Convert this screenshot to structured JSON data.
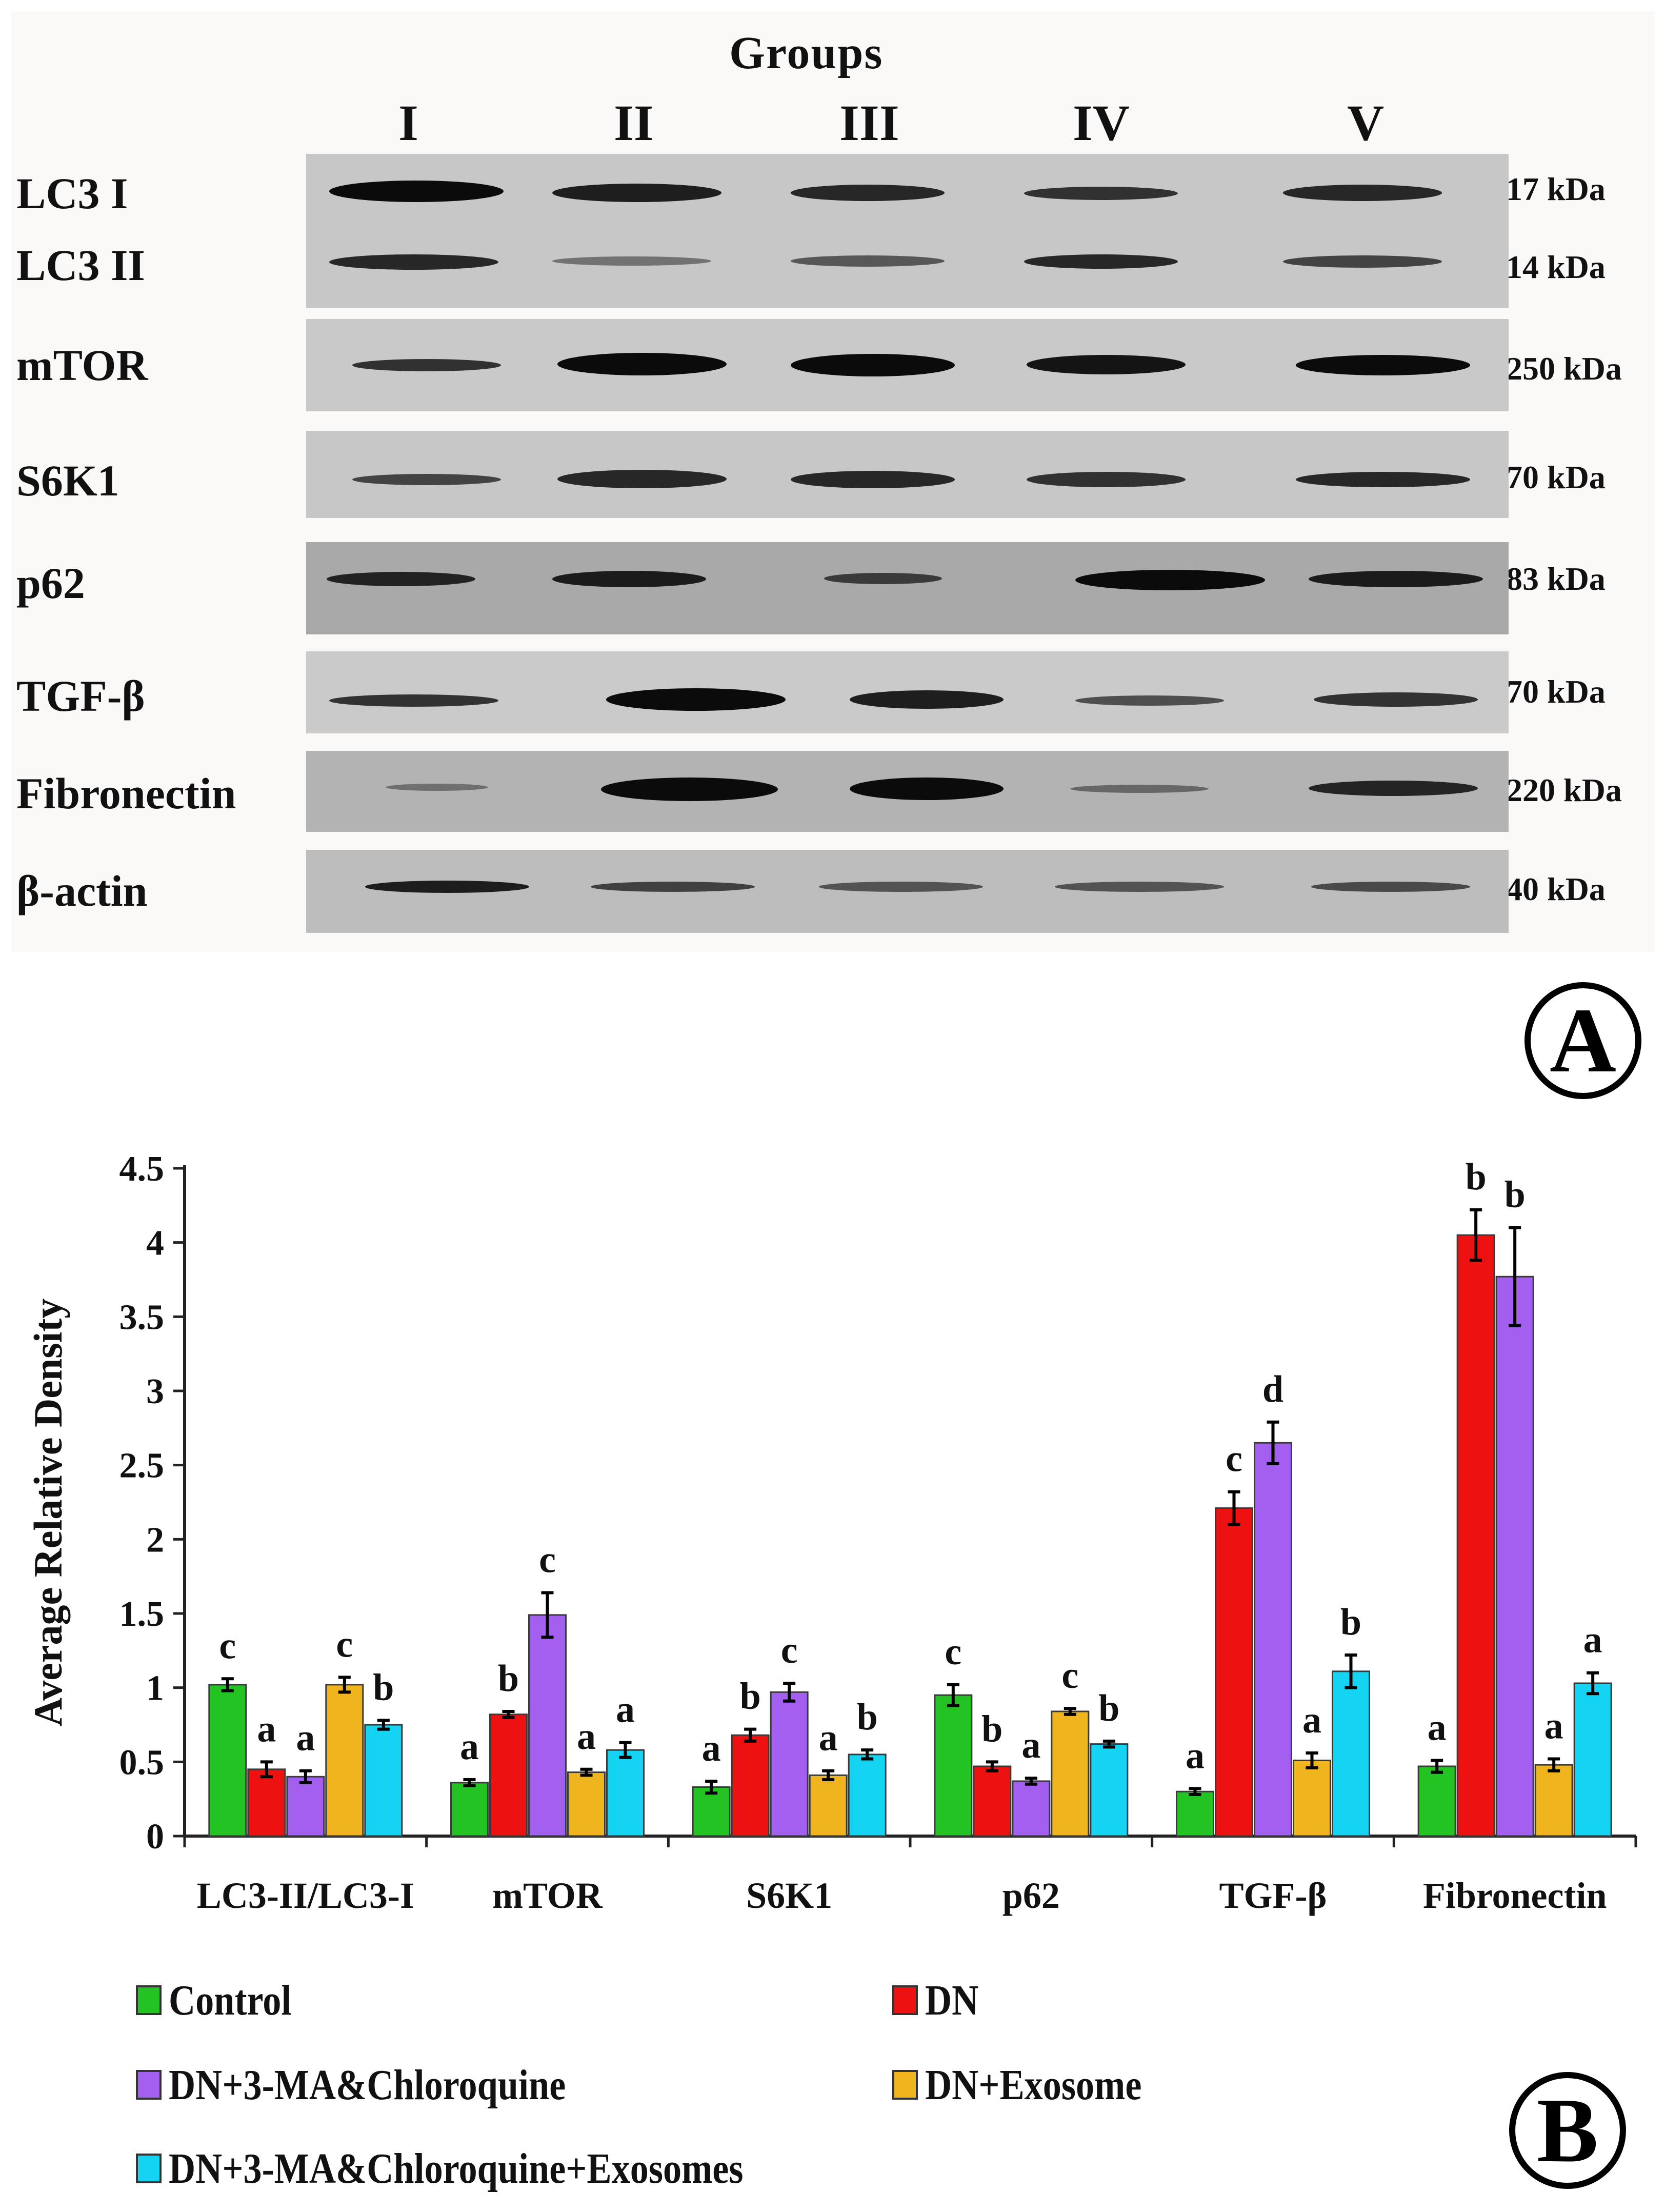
{
  "blot": {
    "title": "Groups",
    "lanes": [
      "I",
      "II",
      "III",
      "IV",
      "V"
    ],
    "rows": [
      {
        "protein": "LC3 I",
        "kda": "17 kDa"
      },
      {
        "protein": "LC3 II",
        "kda": "14 kDa"
      },
      {
        "protein": "mTOR",
        "kda": "250 kDa"
      },
      {
        "protein": "S6K1",
        "kda": "70 kDa"
      },
      {
        "protein": "p62",
        "kda": "83 kDa"
      },
      {
        "protein": "TGF-β",
        "kda": "70 kDa"
      },
      {
        "protein": "Fibronectin",
        "kda": "220 kDa"
      },
      {
        "protein": "β-actin",
        "kda": "40 kDa"
      }
    ]
  },
  "panels": {
    "a": "A",
    "b": "B"
  },
  "chart_data": {
    "type": "bar",
    "ylabel": "Average Relative Density",
    "xlabel": "",
    "ylim": [
      0,
      4.5
    ],
    "yticks": [
      0,
      0.5,
      1,
      1.5,
      2,
      2.5,
      3,
      3.5,
      4,
      4.5
    ],
    "ytick_labels": [
      "0",
      "0.5",
      "1",
      "1.5",
      "2",
      "2.5",
      "3",
      "3.5",
      "4",
      "4.5"
    ],
    "categories": [
      "LC3-II/LC3-I",
      "mTOR",
      "S6K1",
      "p62",
      "TGF-β",
      "Fibronectin"
    ],
    "series": [
      {
        "name": "Control",
        "color": "#22c322",
        "values": [
          1.02,
          0.36,
          0.33,
          0.95,
          0.3,
          0.47
        ],
        "errors": [
          0.04,
          0.02,
          0.04,
          0.07,
          0.02,
          0.04
        ],
        "letters": [
          "c",
          "a",
          "a",
          "c",
          "a",
          "a"
        ]
      },
      {
        "name": "DN",
        "color": "#ee1111",
        "values": [
          0.45,
          0.82,
          0.68,
          0.47,
          2.21,
          4.05
        ],
        "errors": [
          0.05,
          0.02,
          0.04,
          0.03,
          0.11,
          0.17
        ],
        "letters": [
          "a",
          "b",
          "b",
          "b",
          "c",
          "b"
        ]
      },
      {
        "name": "DN+3-MA&Chloroquine",
        "color": "#a35ff0",
        "values": [
          0.4,
          1.49,
          0.97,
          0.37,
          2.65,
          3.77
        ],
        "errors": [
          0.04,
          0.15,
          0.06,
          0.02,
          0.14,
          0.33
        ],
        "letters": [
          "a",
          "c",
          "c",
          "a",
          "d",
          "b"
        ]
      },
      {
        "name": "DN+Exosome",
        "color": "#f0b41e",
        "values": [
          1.02,
          0.43,
          0.41,
          0.84,
          0.51,
          0.48
        ],
        "errors": [
          0.05,
          0.02,
          0.03,
          0.02,
          0.05,
          0.04
        ],
        "letters": [
          "c",
          "a",
          "a",
          "c",
          "a",
          "a"
        ]
      },
      {
        "name": "DN+3-MA&Chloroquine+Exosomes",
        "color": "#15d3f3",
        "values": [
          0.75,
          0.58,
          0.55,
          0.62,
          1.11,
          1.03
        ],
        "errors": [
          0.03,
          0.05,
          0.03,
          0.02,
          0.11,
          0.07
        ],
        "letters": [
          "b",
          "a",
          "b",
          "b",
          "b",
          "a"
        ]
      }
    ]
  }
}
